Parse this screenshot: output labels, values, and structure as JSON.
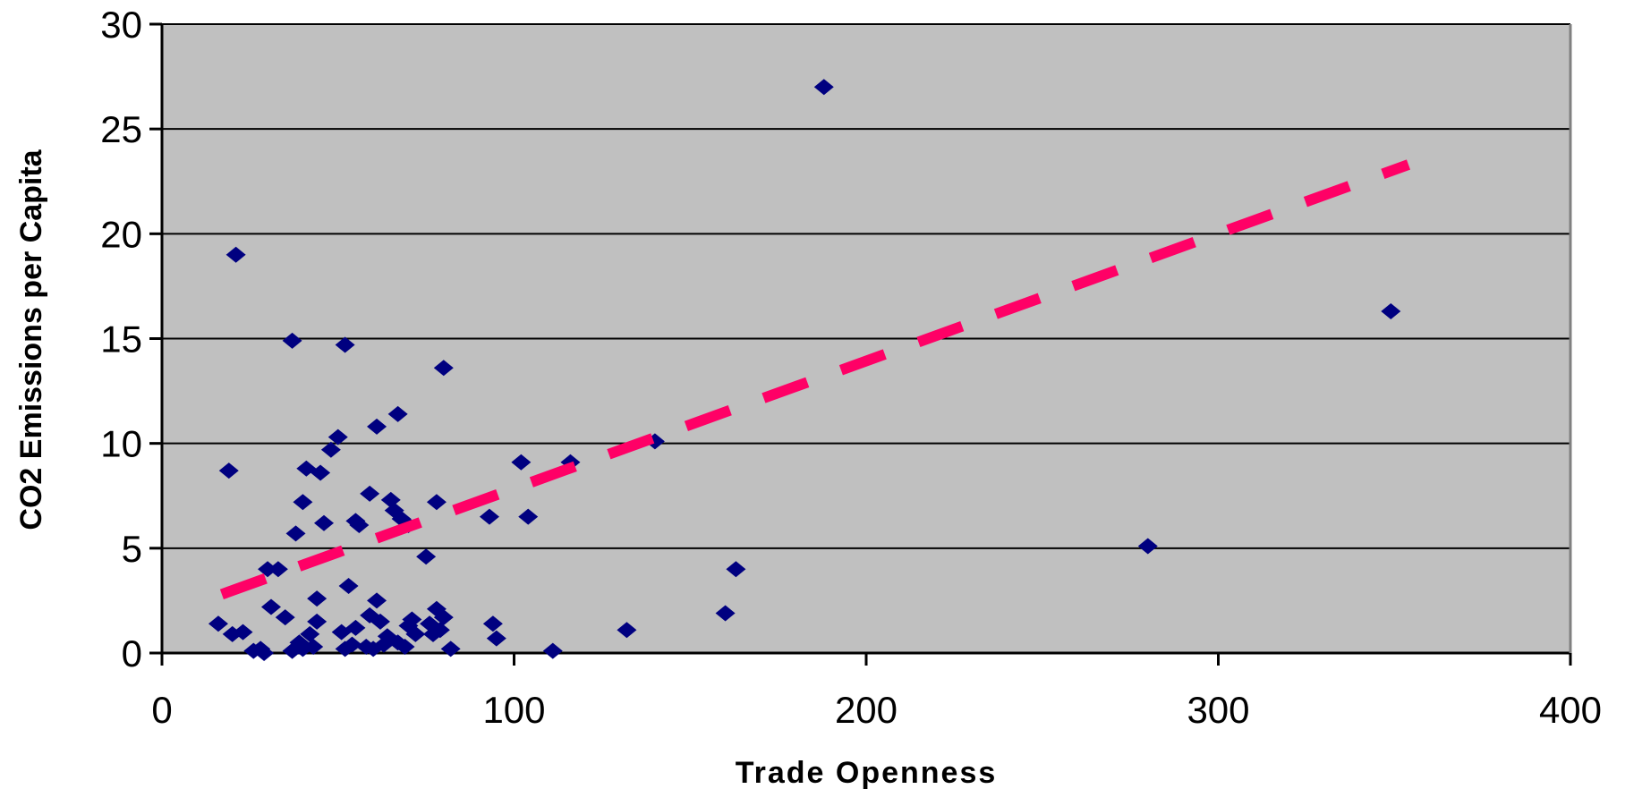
{
  "chart_data": {
    "type": "scatter",
    "title": "",
    "xlabel": "Trade Openness",
    "ylabel": "CO2 Emissions per Capita",
    "xlim": [
      0,
      400
    ],
    "ylim": [
      0,
      30
    ],
    "x_ticks": [
      0,
      100,
      200,
      300,
      400
    ],
    "y_ticks": [
      0,
      5,
      10,
      15,
      20,
      25,
      30
    ],
    "x_tick_labels": [
      "0",
      "100",
      "200",
      "300",
      "400"
    ],
    "y_tick_labels": [
      "0",
      "5",
      "10",
      "15",
      "20",
      "25",
      "30"
    ],
    "grid": "horizontal",
    "legend": "none",
    "colors": {
      "plot_background": "#c0c0c0",
      "marker": "#000080",
      "trendline": "#ff0066",
      "gridline": "#000000"
    },
    "series": [
      {
        "marker": "diamond",
        "points": [
          [
            16,
            1.4
          ],
          [
            19,
            8.7
          ],
          [
            20,
            0.9
          ],
          [
            21,
            19
          ],
          [
            23,
            1.0
          ],
          [
            26,
            0.1
          ],
          [
            28,
            0.2
          ],
          [
            29,
            0.0
          ],
          [
            30,
            4.0
          ],
          [
            31,
            2.2
          ],
          [
            33,
            4.0
          ],
          [
            35,
            1.7
          ],
          [
            37,
            14.9
          ],
          [
            37,
            0.1
          ],
          [
            38,
            5.7
          ],
          [
            39,
            0.5
          ],
          [
            40,
            7.2
          ],
          [
            40,
            0.2
          ],
          [
            41,
            8.8
          ],
          [
            42,
            0.9
          ],
          [
            43,
            0.3
          ],
          [
            44,
            1.5
          ],
          [
            44,
            2.6
          ],
          [
            45,
            8.6
          ],
          [
            46,
            6.2
          ],
          [
            48,
            9.7
          ],
          [
            50,
            10.3
          ],
          [
            51,
            1.0
          ],
          [
            52,
            0.2
          ],
          [
            52,
            14.7
          ],
          [
            53,
            3.2
          ],
          [
            54,
            0.4
          ],
          [
            55,
            1.2
          ],
          [
            55,
            6.3
          ],
          [
            56,
            6.1
          ],
          [
            58,
            0.3
          ],
          [
            59,
            7.6
          ],
          [
            59,
            1.8
          ],
          [
            60,
            0.2
          ],
          [
            61,
            10.8
          ],
          [
            61,
            2.5
          ],
          [
            62,
            1.5
          ],
          [
            63,
            0.4
          ],
          [
            64,
            0.8
          ],
          [
            65,
            7.3
          ],
          [
            66,
            6.8
          ],
          [
            67,
            11.4
          ],
          [
            67,
            0.5
          ],
          [
            68,
            6.4
          ],
          [
            69,
            0.3
          ],
          [
            70,
            6.1
          ],
          [
            70,
            1.3
          ],
          [
            71,
            1.6
          ],
          [
            72,
            0.9
          ],
          [
            75,
            4.6
          ],
          [
            76,
            1.4
          ],
          [
            77,
            0.9
          ],
          [
            78,
            2.1
          ],
          [
            78,
            7.2
          ],
          [
            79,
            1.1
          ],
          [
            80,
            13.6
          ],
          [
            80,
            1.7
          ],
          [
            82,
            0.2
          ],
          [
            93,
            6.5
          ],
          [
            94,
            1.4
          ],
          [
            95,
            0.7
          ],
          [
            102,
            9.1
          ],
          [
            104,
            6.5
          ],
          [
            111,
            0.1
          ],
          [
            116,
            9.1
          ],
          [
            132,
            1.1
          ],
          [
            140,
            10.1
          ],
          [
            160,
            1.9
          ],
          [
            163,
            4.0
          ],
          [
            188,
            27.0
          ],
          [
            280,
            5.1
          ],
          [
            349,
            16.3
          ]
        ]
      }
    ],
    "trendline": {
      "style": "dashed",
      "x": [
        17,
        354
      ],
      "y": [
        2.8,
        23.3
      ]
    }
  }
}
